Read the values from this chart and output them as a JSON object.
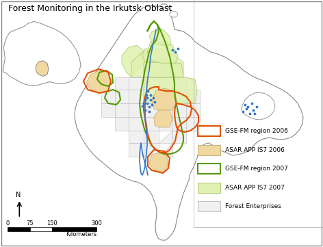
{
  "title": "Forest Monitoring in the Irkutsk Oblast",
  "title_fontsize": 9,
  "background_color": "#ffffff",
  "legend_items": [
    {
      "label": "GSE-FM region 2006",
      "facecolor": "#ffffff",
      "edgecolor": "#e05000",
      "linewidth": 1.5
    },
    {
      "label": "ASAR APP IS7 2006",
      "facecolor": "#f0d8a0",
      "edgecolor": "#c8b080",
      "linewidth": 0.7
    },
    {
      "label": "GSE-FM region 2007",
      "facecolor": "#ffffff",
      "edgecolor": "#559900",
      "linewidth": 1.5
    },
    {
      "label": "ASAR APP IS7 2007",
      "facecolor": "#e0f0b0",
      "edgecolor": "#a8c870",
      "linewidth": 0.7
    },
    {
      "label": "Forest Enterprises",
      "facecolor": "#f0f0f0",
      "edgecolor": "#aaaaaa",
      "linewidth": 0.5
    }
  ],
  "oblast_fill": "#ffffff",
  "oblast_edge": "#888888",
  "oblast_lw": 0.8,
  "sub_fill": "#f0f0f0",
  "sub_edge": "#bbbbbb",
  "sub_lw": 0.4,
  "gse2006_fill": "none",
  "gse2006_edge": "#e05000",
  "gse2006_lw": 1.5,
  "asar2006_fill": "#f0d8a0",
  "asar2006_edge": "#c8b080",
  "asar2006_lw": 0.6,
  "gse2007_fill": "none",
  "gse2007_edge": "#559900",
  "gse2007_lw": 1.5,
  "asar2007_fill": "#e0f0b0",
  "asar2007_edge": "#a8c870",
  "asar2007_lw": 0.6,
  "river_color": "#3377cc",
  "dot_color": "#3377cc",
  "inset_fill": "#ffffff",
  "inset_edge": "#888888",
  "inset_highlight_fill": "#f0d8a0",
  "inset_highlight_edge": "#888888"
}
